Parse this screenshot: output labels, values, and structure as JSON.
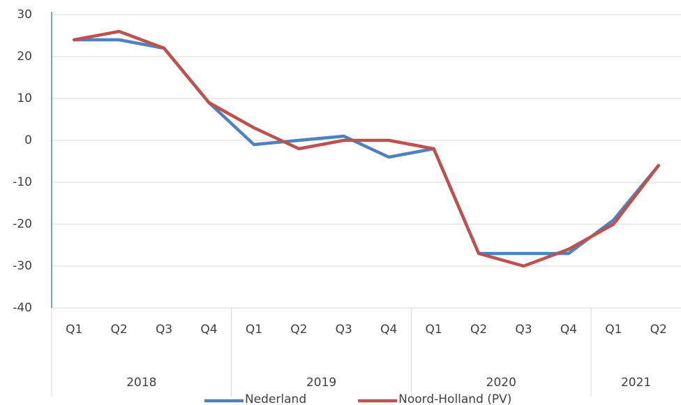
{
  "chart_data": {
    "type": "line",
    "categories": [
      "Q1",
      "Q2",
      "Q3",
      "Q4",
      "Q1",
      "Q2",
      "Q3",
      "Q4",
      "Q1",
      "Q2",
      "Q3",
      "Q4",
      "Q1",
      "Q2"
    ],
    "category_groups": [
      "2018",
      "2019",
      "2020",
      "2021"
    ],
    "series": [
      {
        "name": "Nederland",
        "color": "#4f81bd",
        "values": [
          24,
          24,
          22,
          9,
          -1,
          0,
          1,
          -4,
          -2,
          -27,
          -27,
          -27,
          -19,
          -6
        ]
      },
      {
        "name": "Noord-Holland (PV)",
        "color": "#c0504d",
        "values": [
          24,
          26,
          22,
          9,
          3,
          -2,
          0,
          0,
          -2,
          -27,
          -30,
          -26,
          -20,
          -6
        ]
      }
    ],
    "ylim": [
      -40,
      30
    ],
    "yticks": [
      -40,
      -30,
      -20,
      -10,
      0,
      10,
      20,
      30
    ],
    "grid": true,
    "legend": "bottom"
  }
}
